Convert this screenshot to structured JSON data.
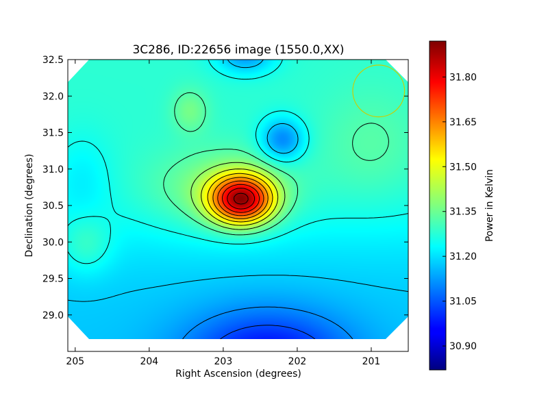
{
  "chart_data": {
    "type": "heatmap",
    "title": "3C286, ID:22656 image (1550.0,XX)",
    "xlabel": "Right Ascension (degrees)",
    "ylabel": "Declination (degrees)",
    "xlim": [
      205.1,
      200.5
    ],
    "ylim": [
      28.5,
      32.5
    ],
    "x_ticks": [
      205,
      204,
      203,
      202,
      201
    ],
    "x_tick_labels": [
      "205",
      "204",
      "203",
      "202",
      "201"
    ],
    "y_ticks": [
      29.0,
      29.5,
      30.0,
      30.5,
      31.0,
      31.5,
      32.0,
      32.5
    ],
    "y_tick_labels": [
      "29.0",
      "29.5",
      "30.0",
      "30.5",
      "31.0",
      "31.5",
      "32.0",
      "32.5"
    ],
    "colorbar": {
      "label": "Power in Kelvin",
      "range": [
        30.82,
        31.92
      ],
      "colormap": "jet",
      "ticks": [
        30.9,
        31.05,
        31.2,
        31.35,
        31.5,
        31.65,
        31.8
      ],
      "tick_labels": [
        "30.90",
        "31.05",
        "31.20",
        "31.35",
        "31.50",
        "31.65",
        "31.80"
      ]
    },
    "sources": [
      {
        "ra": 202.75,
        "dec": 30.58,
        "peak": 31.9
      },
      {
        "ra": 202.2,
        "dec": 31.4,
        "trough": 31.07
      },
      {
        "ra": 202.7,
        "dec": 32.5,
        "trough": 31.12
      },
      {
        "ra": 203.45,
        "dec": 31.8,
        "peak": 31.38
      },
      {
        "ra": 204.75,
        "dec": 29.9,
        "peak": 31.38
      },
      {
        "ra": 202.4,
        "dec": 28.5,
        "trough": 30.83
      }
    ],
    "beam_circle": {
      "ra": 200.9,
      "dec": 32.07,
      "radius_deg": 0.35,
      "color": "#cccc00"
    },
    "contour_color": "#000000"
  }
}
